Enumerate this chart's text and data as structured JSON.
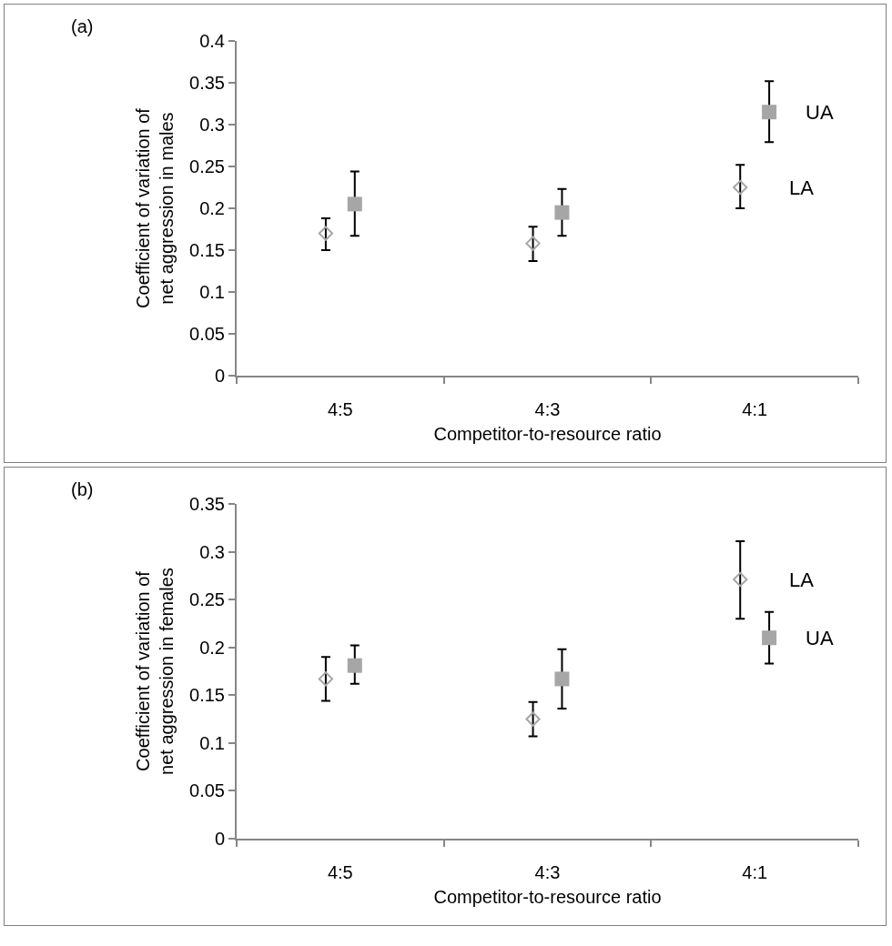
{
  "chart_data": [
    {
      "type": "scatter",
      "annotations": [
        "(a)"
      ],
      "xlabel": "Competitor-to-resource ratio",
      "ylabel": "Coefficient of variation of\nnet aggression in males",
      "categories": [
        "4:5",
        "4:3",
        "4:1"
      ],
      "ylim": [
        0,
        0.4
      ],
      "yticks": [
        0,
        0.05,
        0.1,
        0.15,
        0.2,
        0.25,
        0.3,
        0.35,
        0.4
      ],
      "grid": false,
      "legend": false,
      "series": [
        {
          "name": "LA",
          "color": "#a6a6a6",
          "marker": "diamond",
          "values": [
            0.17,
            0.158,
            0.225
          ],
          "errors": [
            [
              0.15,
              0.188
            ],
            [
              0.137,
              0.178
            ],
            [
              0.2,
              0.252
            ]
          ]
        },
        {
          "name": "UA",
          "color": "#a6a6a6",
          "marker": "square",
          "values": [
            0.205,
            0.195,
            0.315
          ],
          "errors": [
            [
              0.167,
              0.244
            ],
            [
              0.167,
              0.223
            ],
            [
              0.279,
              0.352
            ]
          ]
        }
      ]
    },
    {
      "type": "scatter",
      "annotations": [
        "(b)"
      ],
      "xlabel": "Competitor-to-resource ratio",
      "ylabel": "Coefficient of variation of\nnet aggression in females",
      "categories": [
        "4:5",
        "4:3",
        "4:1"
      ],
      "ylim": [
        0,
        0.35
      ],
      "yticks": [
        0,
        0.05,
        0.1,
        0.15,
        0.2,
        0.25,
        0.3,
        0.35
      ],
      "grid": false,
      "legend": false,
      "series": [
        {
          "name": "LA",
          "color": "#a6a6a6",
          "marker": "diamond",
          "values": [
            0.167,
            0.125,
            0.271
          ],
          "errors": [
            [
              0.144,
              0.19
            ],
            [
              0.107,
              0.143
            ],
            [
              0.23,
              0.311
            ]
          ]
        },
        {
          "name": "UA",
          "color": "#a6a6a6",
          "marker": "square",
          "values": [
            0.181,
            0.167,
            0.21
          ],
          "errors": [
            [
              0.162,
              0.202
            ],
            [
              0.136,
              0.198
            ],
            [
              0.183,
              0.237
            ]
          ]
        }
      ]
    }
  ]
}
